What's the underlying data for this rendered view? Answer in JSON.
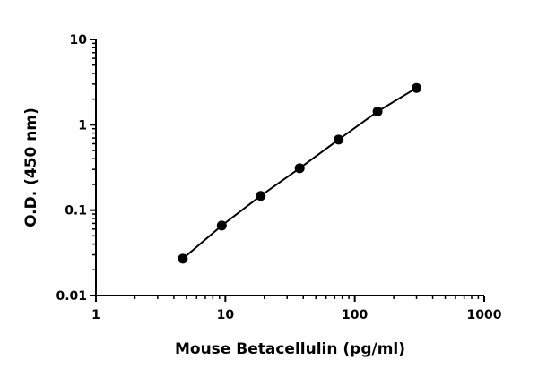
{
  "chart_data": {
    "type": "line",
    "title": "",
    "xlabel": "Mouse Betacellulin (pg/ml)",
    "ylabel": "O.D. (450 nm)",
    "x_scale": "log",
    "y_scale": "log",
    "xlim": [
      1,
      1000
    ],
    "ylim": [
      0.01,
      10
    ],
    "x_ticks": [
      1,
      10,
      100,
      1000
    ],
    "x_tick_labels": [
      "1",
      "10",
      "100",
      "1000"
    ],
    "y_ticks": [
      0.01,
      0.1,
      1,
      10
    ],
    "y_tick_labels": [
      "0.01",
      "0.1",
      "1",
      "10"
    ],
    "grid": false,
    "legend": "none",
    "series": [
      {
        "x": [
          4.69,
          9.38,
          18.75,
          37.5,
          75,
          150,
          300
        ],
        "y": [
          0.027,
          0.066,
          0.147,
          0.31,
          0.67,
          1.43,
          2.7
        ],
        "color": "#000000",
        "marker": "circle",
        "line": "solid"
      }
    ]
  }
}
